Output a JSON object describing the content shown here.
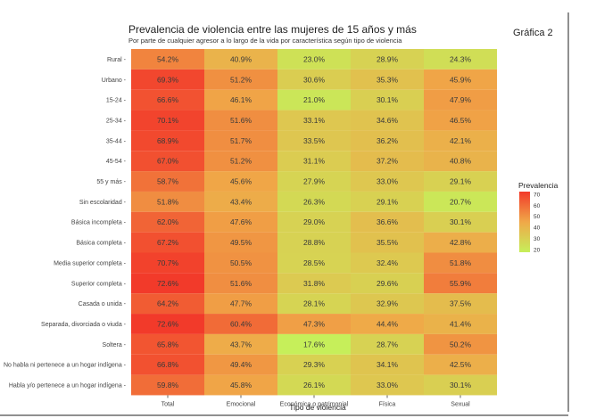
{
  "graph_tag": "Gráfica 2",
  "chart_data": {
    "type": "heatmap",
    "title": "Prevalencia de violencia entre las mujeres de 15 años y más",
    "subtitle": "Por parte de cualquier agresor a lo largo de la vida por característica según tipo de violencia",
    "xlabel": "Tipo de violencia",
    "ylabel": "",
    "columns": [
      "Total",
      "Emocional",
      "Económica o patrimonial",
      "Física",
      "Sexual"
    ],
    "rows": [
      "Rural",
      "Urbano",
      "15-24",
      "25-34",
      "35-44",
      "45-54",
      "55 y más",
      "Sin escolaridad",
      "Básica incompleta",
      "Básica completa",
      "Media superior completa",
      "Superior completa",
      "Casada o unida",
      "Separada, divorciada o viuda",
      "Soltera",
      "No habla ni pertenece a un hogar indígena",
      "Habla y/o pertenece a un hogar indígena"
    ],
    "values": [
      [
        54.2,
        40.9,
        23.0,
        28.9,
        24.3
      ],
      [
        69.3,
        51.2,
        30.6,
        35.3,
        45.9
      ],
      [
        66.6,
        46.1,
        21.0,
        30.1,
        47.9
      ],
      [
        70.1,
        51.6,
        33.1,
        34.6,
        46.5
      ],
      [
        68.9,
        51.7,
        33.5,
        36.2,
        42.1
      ],
      [
        67.0,
        51.2,
        31.1,
        37.2,
        40.8
      ],
      [
        58.7,
        45.6,
        27.9,
        33.0,
        29.1
      ],
      [
        51.8,
        43.4,
        26.3,
        29.1,
        20.7
      ],
      [
        62.0,
        47.6,
        29.0,
        36.6,
        30.1
      ],
      [
        67.2,
        49.5,
        28.8,
        35.5,
        42.8
      ],
      [
        70.7,
        50.5,
        28.5,
        32.4,
        51.8
      ],
      [
        72.6,
        51.6,
        31.8,
        29.6,
        55.9
      ],
      [
        64.2,
        47.7,
        28.1,
        32.9,
        37.5
      ],
      [
        72.6,
        60.4,
        47.3,
        44.4,
        41.4
      ],
      [
        65.8,
        43.7,
        17.6,
        28.7,
        50.2
      ],
      [
        66.8,
        49.4,
        29.3,
        34.1,
        42.5
      ],
      [
        59.8,
        45.8,
        26.1,
        33.0,
        30.1
      ]
    ],
    "legend": {
      "title": "Prevalencia",
      "ticks": [
        70,
        60,
        50,
        40,
        30,
        20
      ],
      "range": [
        17.6,
        72.6
      ],
      "position": "right"
    },
    "colors": {
      "low": "#c6ef5a",
      "mid": "#f0a848",
      "high": "#f23a2a"
    }
  }
}
